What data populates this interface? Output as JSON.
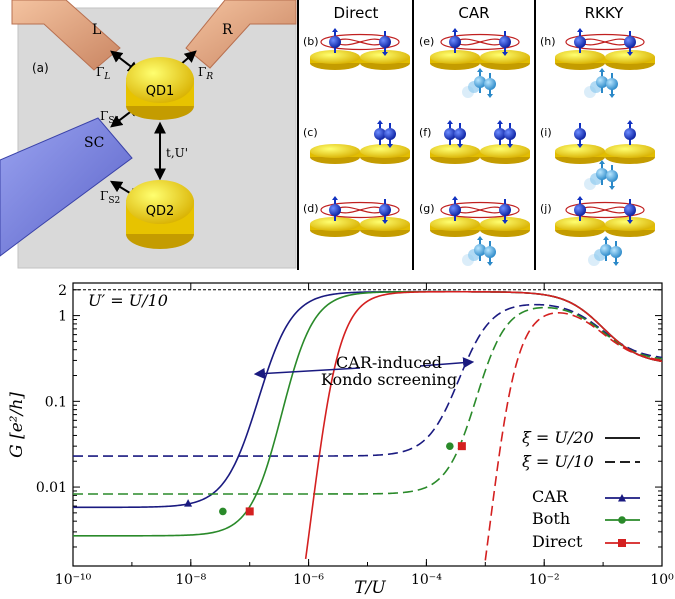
{
  "panel_a": {
    "label": "(a)",
    "lead_left": "L",
    "lead_right": "R",
    "lead_sc": "SC",
    "qd1": "QD1",
    "qd2": "QD2",
    "gamma_l_base": "Γ",
    "gamma_l_sub": "L",
    "gamma_r_base": "Γ",
    "gamma_r_sub": "R",
    "gamma_s1_base": "Γ",
    "gamma_s1_sub": "S1",
    "gamma_s2_base": "Γ",
    "gamma_s2_sub": "S2",
    "coupling": "t,U'"
  },
  "columns": [
    {
      "title": "Direct",
      "labels": [
        "(b)",
        "(c)",
        "(d)"
      ]
    },
    {
      "title": "CAR",
      "labels": [
        "(e)",
        "(f)",
        "(g)"
      ]
    },
    {
      "title": "RKKY",
      "labels": [
        "(h)",
        "(i)",
        "(j)"
      ]
    }
  ],
  "colors": {
    "car": "#1a1a80",
    "both": "#2a8a2a",
    "direct": "#d42020",
    "dot": "#f2c500",
    "spin": "#1030c0"
  },
  "chart_data": {
    "type": "line",
    "xlabel": "T/U",
    "ylabel": "G [e²/h]",
    "xscale": "log",
    "yscale": "log",
    "xlim": [
      1e-10,
      1
    ],
    "ylim": [
      0.0012,
      2.4
    ],
    "xticks": [
      "10⁻¹⁰",
      "10⁻⁸",
      "10⁻⁶",
      "10⁻⁴",
      "10⁻²",
      "10⁰"
    ],
    "yticks": [
      "0.01",
      "0.1",
      "1",
      "2"
    ],
    "param_label": "U′ = U/10",
    "annotation": [
      "CAR-induced",
      "Kondo screening"
    ],
    "linestyle_legend": [
      {
        "label": "ξ = U/20",
        "style": "solid"
      },
      {
        "label": "ξ = U/10",
        "style": "dashed"
      }
    ],
    "series": [
      {
        "name": "CAR",
        "color": "#1a1a80",
        "marker": "triangle",
        "solid": {
          "low": 0.0058,
          "t_half": 1.4e-07,
          "w": 0.9
        },
        "dashed": {
          "low": 0.023,
          "t_half": 0.00036,
          "w": 0.85,
          "peak": 1.45
        },
        "marker_points": [
          [
            9e-09,
            0.0065
          ]
        ]
      },
      {
        "name": "Both",
        "color": "#2a8a2a",
        "marker": "circle",
        "solid": {
          "low": 0.0027,
          "t_half": 3.5e-07,
          "w": 0.85
        },
        "dashed": {
          "low": 0.0083,
          "t_half": 0.0007,
          "w": 0.8,
          "peak": 1.4
        },
        "marker_points": [
          [
            3.5e-08,
            0.0052
          ],
          [
            0.00025,
            0.03
          ]
        ]
      },
      {
        "name": "Direct",
        "color": "#d42020",
        "marker": "square",
        "solid": {
          "low": 1e-05,
          "t_half": 1.1e-06,
          "w": 0.78
        },
        "dashed": {
          "low": 1e-05,
          "t_half": 0.0012,
          "w": 0.75,
          "peak": 1.35
        },
        "marker_points": [
          [
            1e-07,
            0.0052
          ],
          [
            0.0004,
            0.03
          ]
        ]
      }
    ]
  }
}
